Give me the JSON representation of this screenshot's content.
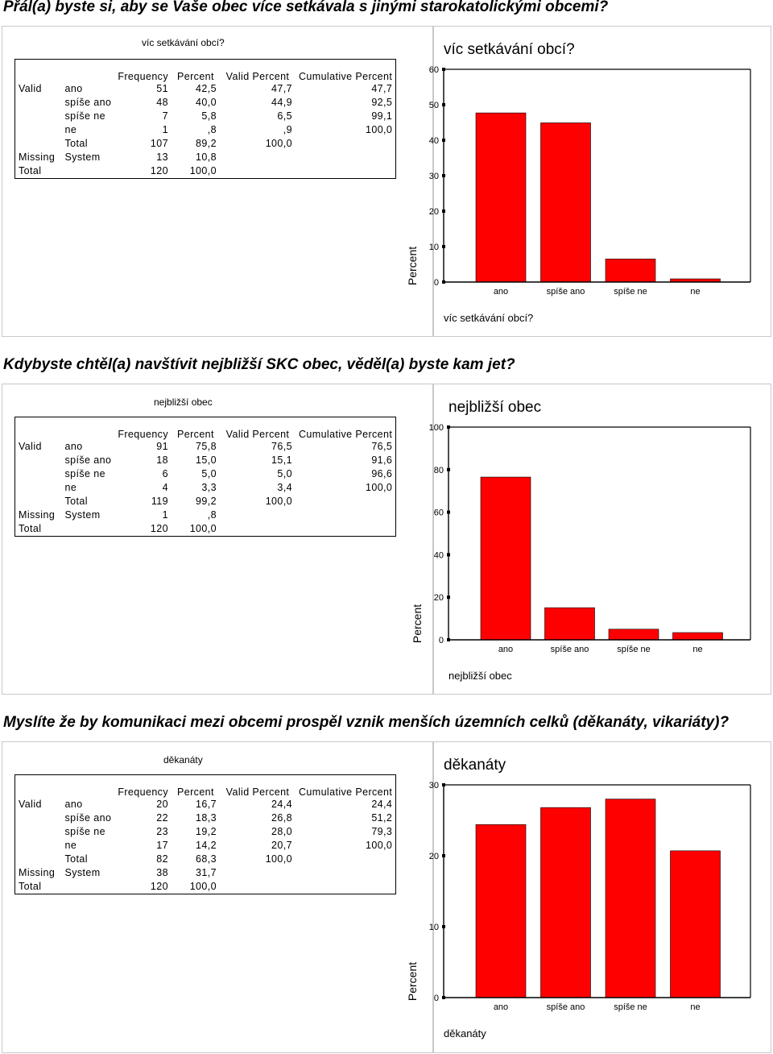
{
  "sections": [
    {
      "heading": "Přál(a) byste si, aby se Vaše obec více setkávala s jinými starokatolickými obcemi?",
      "table": {
        "title": "víc setkávání obcí?",
        "headers": [
          "Frequency",
          "Percent",
          "Valid Percent",
          "Cumulative Percent"
        ],
        "rows": [
          {
            "group": "Valid",
            "label": "ano",
            "cells": [
              "51",
              "42,5",
              "47,7",
              "47,7"
            ]
          },
          {
            "group": "",
            "label": "spíše ano",
            "cells": [
              "48",
              "40,0",
              "44,9",
              "92,5"
            ]
          },
          {
            "group": "",
            "label": "spíše ne",
            "cells": [
              "7",
              "5,8",
              "6,5",
              "99,1"
            ]
          },
          {
            "group": "",
            "label": "ne",
            "cells": [
              "1",
              ",8",
              ",9",
              "100,0"
            ]
          },
          {
            "group": "",
            "label": "Total",
            "cells": [
              "107",
              "89,2",
              "100,0",
              ""
            ]
          },
          {
            "group": "Missing",
            "label": "System",
            "cells": [
              "13",
              "10,8",
              "",
              ""
            ]
          },
          {
            "group": "Total",
            "label": "",
            "cells": [
              "120",
              "100,0",
              "",
              ""
            ]
          }
        ]
      }
    },
    {
      "heading": "Kdybyste chtěl(a) navštívit nejbližší SKC obec, věděl(a) byste kam jet?",
      "table": {
        "title": "nejbližší obec",
        "headers": [
          "Frequency",
          "Percent",
          "Valid Percent",
          "Cumulative Percent"
        ],
        "rows": [
          {
            "group": "Valid",
            "label": "ano",
            "cells": [
              "91",
              "75,8",
              "76,5",
              "76,5"
            ]
          },
          {
            "group": "",
            "label": "spíše ano",
            "cells": [
              "18",
              "15,0",
              "15,1",
              "91,6"
            ]
          },
          {
            "group": "",
            "label": "spíše ne",
            "cells": [
              "6",
              "5,0",
              "5,0",
              "96,6"
            ]
          },
          {
            "group": "",
            "label": "ne",
            "cells": [
              "4",
              "3,3",
              "3,4",
              "100,0"
            ]
          },
          {
            "group": "",
            "label": "Total",
            "cells": [
              "119",
              "99,2",
              "100,0",
              ""
            ]
          },
          {
            "group": "Missing",
            "label": "System",
            "cells": [
              "1",
              ",8",
              "",
              ""
            ]
          },
          {
            "group": "Total",
            "label": "",
            "cells": [
              "120",
              "100,0",
              "",
              ""
            ]
          }
        ]
      }
    },
    {
      "heading": "Myslíte že by komunikaci mezi obcemi prospěl vznik menších územních celků (děkanáty, vikariáty)?",
      "table": {
        "title": "děkanáty",
        "headers": [
          "Frequency",
          "Percent",
          "Valid Percent",
          "Cumulative Percent"
        ],
        "rows": [
          {
            "group": "Valid",
            "label": "ano",
            "cells": [
              "20",
              "16,7",
              "24,4",
              "24,4"
            ]
          },
          {
            "group": "",
            "label": "spíše ano",
            "cells": [
              "22",
              "18,3",
              "26,8",
              "51,2"
            ]
          },
          {
            "group": "",
            "label": "spíše ne",
            "cells": [
              "23",
              "19,2",
              "28,0",
              "79,3"
            ]
          },
          {
            "group": "",
            "label": "ne",
            "cells": [
              "17",
              "14,2",
              "20,7",
              "100,0"
            ]
          },
          {
            "group": "",
            "label": "Total",
            "cells": [
              "82",
              "68,3",
              "100,0",
              ""
            ]
          },
          {
            "group": "Missing",
            "label": "System",
            "cells": [
              "38",
              "31,7",
              "",
              ""
            ]
          },
          {
            "group": "Total",
            "label": "",
            "cells": [
              "120",
              "100,0",
              "",
              ""
            ]
          }
        ]
      }
    }
  ],
  "chart_data": [
    {
      "type": "bar",
      "title": "víc setkávání obcí?",
      "xlabel": "víc setkávání obcí?",
      "ylabel": "Percent",
      "categories": [
        "ano",
        "spíše ano",
        "spíše ne",
        "ne"
      ],
      "values": [
        47.7,
        44.9,
        6.5,
        0.9
      ],
      "ylim": [
        0,
        60
      ],
      "yticks": [
        0,
        10,
        20,
        30,
        40,
        50,
        60
      ],
      "ytick_labels": [
        "0",
        "10",
        "20",
        "30",
        "40",
        "50",
        "60"
      ],
      "bar_color": "#ff0000",
      "grid": false
    },
    {
      "type": "bar",
      "title": "nejbližší obec",
      "xlabel": "nejbližší obec",
      "ylabel": "Percent",
      "categories": [
        "ano",
        "spíše ano",
        "spíše ne",
        "ne"
      ],
      "values": [
        76.5,
        15.1,
        5.0,
        3.4
      ],
      "ylim": [
        0,
        100
      ],
      "yticks": [
        0,
        20,
        40,
        60,
        80,
        100
      ],
      "ytick_labels": [
        "0",
        "20",
        "40",
        "60",
        "80",
        "100"
      ],
      "bar_color": "#ff0000",
      "grid": false
    },
    {
      "type": "bar",
      "title": "děkanáty",
      "xlabel": "děkanáty",
      "ylabel": "Percent",
      "categories": [
        "ano",
        "spíše ano",
        "spíše ne",
        "ne"
      ],
      "values": [
        24.4,
        26.8,
        28.0,
        20.7
      ],
      "ylim": [
        0,
        30
      ],
      "yticks": [
        0,
        10,
        20,
        30
      ],
      "ytick_labels": [
        "0",
        "10",
        "20",
        "30"
      ],
      "bar_color": "#ff0000",
      "grid": false
    }
  ]
}
